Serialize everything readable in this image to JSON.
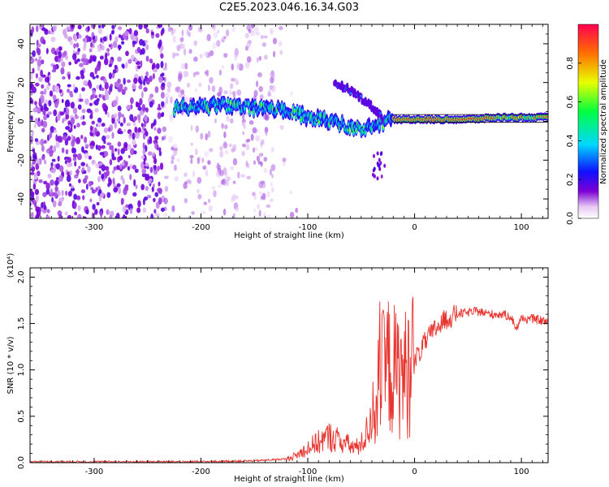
{
  "title": "C2E5.2023.046.16.34.G03",
  "colors": {
    "snr_line": "#e8332e",
    "frame": "#000000"
  },
  "chart_data": [
    {
      "type": "heatmap",
      "xlabel": "Height of straight line (km)",
      "ylabel": "Frequency (Hz)",
      "xlim": [
        -360,
        125
      ],
      "ylim": [
        -50,
        50
      ],
      "xticks": [
        -300,
        -200,
        -100,
        0,
        100
      ],
      "yticks": [
        -40,
        -20,
        0,
        20,
        40
      ],
      "colorbar": {
        "label": "Normalized spectral amplitude",
        "range": [
          0,
          1
        ],
        "ticks": [
          "0.0",
          "0.2",
          "0.4",
          "0.6",
          "0.8"
        ]
      },
      "ridge": [
        {
          "x": -225,
          "y": 7
        },
        {
          "x": -200,
          "y": 8
        },
        {
          "x": -175,
          "y": 8
        },
        {
          "x": -150,
          "y": 7
        },
        {
          "x": -125,
          "y": 6
        },
        {
          "x": -110,
          "y": 4
        },
        {
          "x": -100,
          "y": 2
        },
        {
          "x": -80,
          "y": 0
        },
        {
          "x": -60,
          "y": -3
        },
        {
          "x": -50,
          "y": -4
        },
        {
          "x": -40,
          "y": -3
        },
        {
          "x": -25,
          "y": 0
        },
        {
          "x": -20,
          "y": 1
        },
        {
          "x": 0,
          "y": 1
        },
        {
          "x": 50,
          "y": 1
        },
        {
          "x": 80,
          "y": 2
        },
        {
          "x": 100,
          "y": 2
        },
        {
          "x": 125,
          "y": 2
        }
      ],
      "branch": [
        {
          "x": -75,
          "y": 20
        },
        {
          "x": -60,
          "y": 16
        },
        {
          "x": -45,
          "y": 10
        },
        {
          "x": -35,
          "y": 5
        },
        {
          "x": -30,
          "y": 2
        }
      ]
    },
    {
      "type": "line",
      "xlabel": "Height of straight line (km)",
      "ylabel": "SNR (10 * v/v)",
      "scale_label": "(x10⁴)",
      "xlim": [
        -360,
        125
      ],
      "ylim": [
        0,
        2.1
      ],
      "xticks": [
        -300,
        -200,
        -100,
        0,
        100
      ],
      "yticks": [
        "0.0",
        "0.5",
        "1.0",
        "1.5",
        "2.0"
      ],
      "series": [
        {
          "x": [
            -360,
            -300,
            -200,
            -150,
            -120,
            -110,
            -100,
            -90,
            -80,
            -70,
            -60,
            -55,
            -50,
            -45,
            -40,
            -35,
            -30,
            -25,
            -20,
            -15,
            -10,
            -5,
            0,
            10,
            20,
            30,
            40,
            50,
            60,
            70,
            80,
            90,
            95,
            100,
            110,
            125
          ],
          "y": [
            0.01,
            0.01,
            0.01,
            0.02,
            0.04,
            0.08,
            0.16,
            0.22,
            0.28,
            0.24,
            0.18,
            0.16,
            0.2,
            0.32,
            0.5,
            0.75,
            0.95,
            1.05,
            1.0,
            0.95,
            0.95,
            1.0,
            1.1,
            1.3,
            1.45,
            1.55,
            1.6,
            1.62,
            1.63,
            1.6,
            1.6,
            1.58,
            1.45,
            1.55,
            1.55,
            1.52
          ]
        }
      ]
    }
  ]
}
